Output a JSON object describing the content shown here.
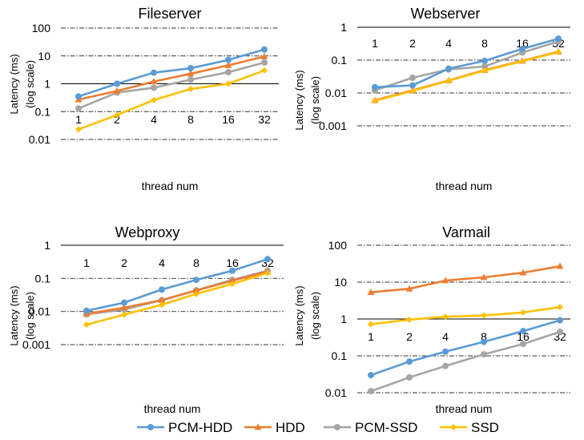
{
  "chart_data": [
    {
      "type": "line",
      "title": "Fileserver",
      "xlabel": "thread num",
      "ylabel": "Latency (ms)",
      "ylabel_sub": "(log scale)",
      "yscale": "log",
      "ylim": [
        0.01,
        100
      ],
      "yticks": [
        "100",
        "10",
        "1",
        "0.1",
        "0.01"
      ],
      "categories": [
        "1",
        "2",
        "4",
        "8",
        "16",
        "32"
      ],
      "grid": "dash-dot horizontal",
      "series": [
        {
          "name": "PCM-HDD",
          "values": [
            0.35,
            1.0,
            2.5,
            3.6,
            7.2,
            17
          ]
        },
        {
          "name": "HDD",
          "values": [
            0.27,
            0.55,
            1.2,
            2.3,
            4.6,
            9.5
          ]
        },
        {
          "name": "PCM-SSD",
          "values": [
            0.13,
            0.48,
            0.72,
            1.4,
            2.6,
            5.8
          ]
        },
        {
          "name": "SSD",
          "values": [
            0.023,
            0.075,
            0.26,
            0.65,
            1.0,
            3.0
          ]
        }
      ]
    },
    {
      "type": "line",
      "title": "Webserver",
      "xlabel": "thread num",
      "ylabel": "Latency (ms)",
      "ylabel_sub": "(log scale)",
      "yscale": "log",
      "ylim": [
        0.001,
        1
      ],
      "yticks": [
        "1",
        "0.1",
        "0.01",
        "0.001"
      ],
      "categories": [
        "1",
        "2",
        "4",
        "8",
        "16",
        "32"
      ],
      "grid": "dash-dot horizontal",
      "series": [
        {
          "name": "PCM-HDD",
          "values": [
            0.015,
            0.017,
            0.055,
            0.095,
            0.22,
            0.45
          ]
        },
        {
          "name": "HDD",
          "values": [
            0.006,
            0.012,
            0.024,
            0.05,
            0.095,
            0.18
          ]
        },
        {
          "name": "PCM-SSD",
          "values": [
            0.012,
            0.029,
            0.052,
            0.064,
            0.17,
            0.37
          ]
        },
        {
          "name": "SSD",
          "values": [
            0.0058,
            0.0115,
            0.0235,
            0.048,
            0.092,
            0.175
          ]
        }
      ]
    },
    {
      "type": "line",
      "title": "Webproxy",
      "xlabel": "thread num",
      "ylabel": "Latency (ms)",
      "ylabel_sub": "(log scale)",
      "yscale": "log",
      "ylim": [
        0.001,
        1
      ],
      "yticks": [
        "1",
        "0.1",
        "0.01",
        "0.001"
      ],
      "categories": [
        "1",
        "2",
        "4",
        "8",
        "16",
        "32"
      ],
      "grid": "dash-dot horizontal",
      "series": [
        {
          "name": "PCM-HDD",
          "values": [
            0.0105,
            0.0185,
            0.046,
            0.09,
            0.17,
            0.38
          ]
        },
        {
          "name": "HDD",
          "values": [
            0.0085,
            0.013,
            0.022,
            0.043,
            0.085,
            0.16
          ]
        },
        {
          "name": "PCM-SSD",
          "values": [
            0.0082,
            0.0115,
            0.022,
            0.044,
            0.09,
            0.17
          ]
        },
        {
          "name": "SSD",
          "values": [
            0.004,
            0.008,
            0.016,
            0.034,
            0.068,
            0.145
          ]
        }
      ]
    },
    {
      "type": "line",
      "title": "Varmail",
      "xlabel": "thread num",
      "ylabel": "Latency (ms)",
      "ylabel_sub": "(log scale)",
      "yscale": "log",
      "ylim": [
        0.01,
        100
      ],
      "yticks": [
        "100",
        "10",
        "1",
        "0.1",
        "0.01"
      ],
      "categories": [
        "1",
        "2",
        "4",
        "8",
        "16",
        "32"
      ],
      "grid": "dash-dot horizontal",
      "series": [
        {
          "name": "PCM-HDD",
          "values": [
            0.03,
            0.07,
            0.13,
            0.24,
            0.47,
            0.92
          ]
        },
        {
          "name": "HDD",
          "values": [
            5.3,
            6.6,
            11,
            13.5,
            18,
            27
          ]
        },
        {
          "name": "PCM-SSD",
          "values": [
            0.011,
            0.026,
            0.053,
            0.11,
            0.21,
            0.45
          ]
        },
        {
          "name": "SSD",
          "values": [
            0.72,
            0.96,
            1.15,
            1.25,
            1.5,
            2.1
          ]
        }
      ]
    }
  ],
  "legend": {
    "placement": "bottom",
    "items": [
      {
        "name": "PCM-HDD",
        "color": "#5b9bd5",
        "marker": "circle"
      },
      {
        "name": "HDD",
        "color": "#ed7d31",
        "marker": "triangle"
      },
      {
        "name": "PCM-SSD",
        "color": "#a5a5a5",
        "marker": "circle"
      },
      {
        "name": "SSD",
        "color": "#ffc000",
        "marker": "diamond"
      }
    ]
  }
}
